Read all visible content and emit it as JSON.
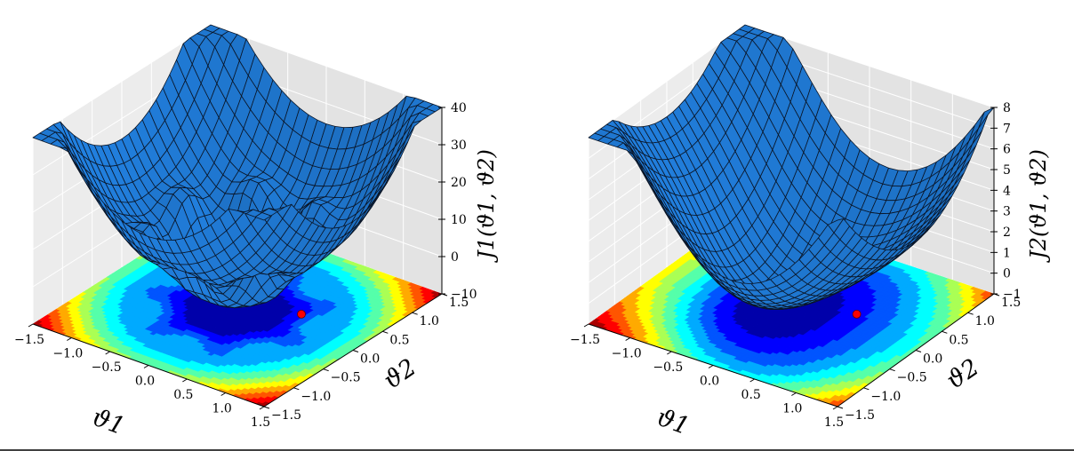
{
  "chart_data": [
    {
      "type": "surface",
      "title": "",
      "xlabel": "ϑ1",
      "ylabel": "ϑ2",
      "zlabel": "J1(ϑ1, ϑ2)",
      "x_ticks": [
        "−1.5",
        "−1.0",
        "−0.5",
        "0.0",
        "0.5",
        "1.0",
        "1.5"
      ],
      "y_ticks": [
        "−1.5",
        "−1.0",
        "−0.5",
        "0.0",
        "0.5",
        "1.0",
        "1.5"
      ],
      "z_ticks": [
        "−10",
        "0",
        "10",
        "20",
        "30",
        "40"
      ],
      "xlim": [
        -1.5,
        1.5
      ],
      "ylim": [
        -1.5,
        1.5
      ],
      "zlim": [
        -10,
        40
      ],
      "contour_projection": true,
      "colormap": "jet",
      "surface_color": "#1f77d0",
      "minimum_marker": {
        "x": 0.6,
        "y": 0.3,
        "color": "#ff0000"
      },
      "grid": true
    },
    {
      "type": "surface",
      "title": "",
      "xlabel": "ϑ1",
      "ylabel": "ϑ2",
      "zlabel": "J2(ϑ1, ϑ2)",
      "x_ticks": [
        "−1.5",
        "−1.0",
        "−0.5",
        "0.0",
        "0.5",
        "1.0",
        "1.5"
      ],
      "y_ticks": [
        "−1.5",
        "−1.0",
        "−0.5",
        "0.0",
        "0.5",
        "1.0",
        "1.5"
      ],
      "z_ticks": [
        "−1",
        "0",
        "1",
        "2",
        "3",
        "4",
        "5",
        "6",
        "7",
        "8"
      ],
      "xlim": [
        -1.5,
        1.5
      ],
      "ylim": [
        -1.5,
        1.5
      ],
      "zlim": [
        -1,
        8
      ],
      "contour_projection": true,
      "colormap": "jet",
      "surface_color": "#1f77d0",
      "minimum_marker": {
        "x": 0.6,
        "y": 0.3,
        "color": "#ff0000"
      },
      "grid": true
    }
  ]
}
